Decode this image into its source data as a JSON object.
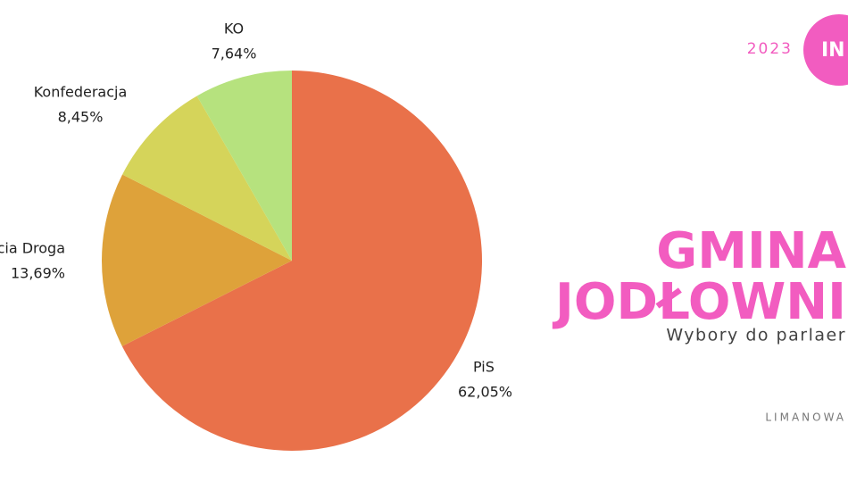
{
  "chart_data": {
    "type": "pie",
    "categories": [
      "PiS",
      "Trzecia Droga",
      "Konfederacja",
      "KO"
    ],
    "values": [
      62.05,
      13.69,
      8.45,
      7.64
    ],
    "value_labels": [
      "62,05%",
      "13,69%",
      "8,45%",
      "7,64%"
    ],
    "colors": [
      "#e9714a",
      "#dea23a",
      "#d5d45a",
      "#b6e27e"
    ],
    "year": "2023",
    "badge": "IN",
    "title": [
      "GMINA",
      "JODŁOWNI"
    ],
    "subtitle": "Wybory do parlaer",
    "source": "LIMANOWA"
  }
}
